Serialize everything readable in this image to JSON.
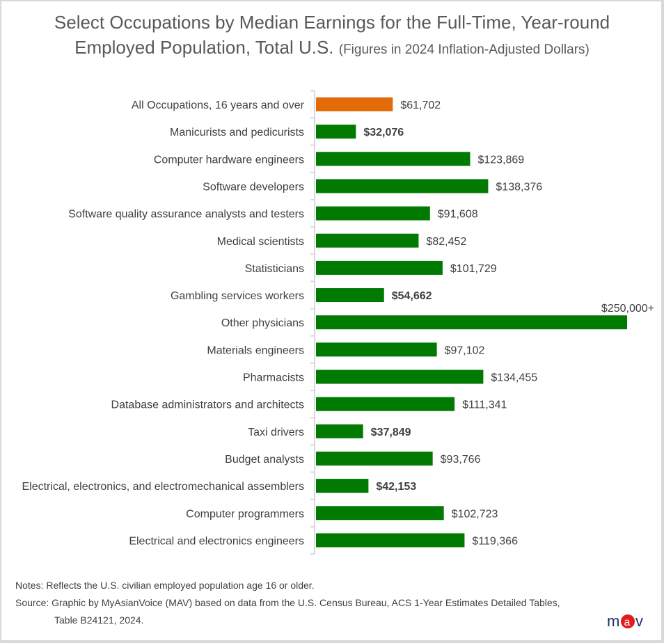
{
  "title": {
    "main_line1": "Select Occupations by Median Earnings for the Full-Time, Year-round",
    "main_line2": "Employed Population, Total U.S.",
    "subtitle": "(Figures in 2024 Inflation-Adjusted Dollars)"
  },
  "chart_data": {
    "type": "bar",
    "orientation": "horizontal",
    "title": "Select Occupations by Median Earnings for the Full-Time, Year-round Employed Population, Total U.S.",
    "subtitle": "(Figures in 2024 Inflation-Adjusted Dollars)",
    "xlabel": "",
    "ylabel": "",
    "xlim": [
      0,
      250000
    ],
    "grid": false,
    "categories": [
      "All Occupations, 16 years and over",
      "Manicurists and pedicurists",
      "Computer hardware engineers",
      "Software developers",
      "Software quality assurance analysts and testers",
      "Medical scientists",
      "Statisticians",
      "Gambling services workers",
      "Other physicians",
      "Materials engineers",
      "Pharmacists",
      "Database administrators and architects",
      "Taxi drivers",
      "Budget analysts",
      "Electrical, electronics, and electromechanical assemblers",
      "Computer programmers",
      "Electrical and electronics engineers"
    ],
    "values": [
      61702,
      32076,
      123869,
      138376,
      91608,
      82452,
      101729,
      54662,
      250000,
      97102,
      134455,
      111341,
      37849,
      93766,
      42153,
      102723,
      119366
    ],
    "labels": [
      "$61,702",
      "$32,076",
      "$123,869",
      "$138,376",
      "$91,608",
      "$82,452",
      "$101,729",
      "$54,662",
      "$250,000+",
      "$97,102",
      "$134,455",
      "$111,341",
      "$37,849",
      "$93,766",
      "$42,153",
      "$102,723",
      "$119,366"
    ],
    "bold_labels": [
      false,
      true,
      false,
      false,
      false,
      false,
      false,
      true,
      false,
      false,
      false,
      false,
      true,
      false,
      true,
      false,
      false
    ],
    "highlight_index": 0,
    "colors": {
      "highlight": "#e36c09",
      "default": "#007a00"
    }
  },
  "notes": {
    "note": "Notes:  Reflects the U.S. civilian employed population age 16 or older.",
    "source_line1": "Source: Graphic by MyAsianVoice (MAV) based on data from the U.S. Census Bureau, ACS 1-Year Estimates Detailed Tables,",
    "source_line2": "Table B24121, 2024."
  },
  "logo": {
    "text": "mav",
    "color_text": "#1f2f6b",
    "color_circle": "#e21b1b"
  }
}
